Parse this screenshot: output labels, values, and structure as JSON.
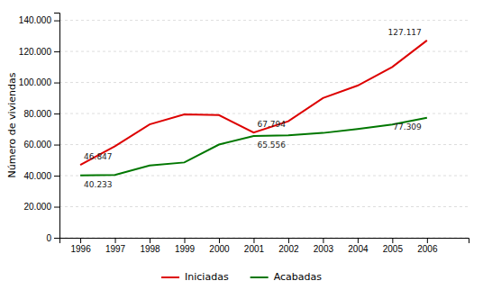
{
  "chart_data": {
    "type": "line",
    "y_label": "Número de viviendas",
    "x": [
      1996,
      1997,
      1998,
      1999,
      2000,
      2001,
      2002,
      2003,
      2004,
      2005,
      2006
    ],
    "series": [
      {
        "name": "Iniciadas",
        "color": "#dd0000",
        "values": [
          46847,
          59000,
          73000,
          79500,
          79000,
          67794,
          75000,
          90000,
          98000,
          110000,
          127117
        ]
      },
      {
        "name": "Acabadas",
        "color": "#007700",
        "values": [
          40233,
          40500,
          46500,
          48500,
          60000,
          65556,
          66000,
          67500,
          70000,
          73000,
          77309
        ]
      }
    ],
    "xlim": [
      1995.4,
      2007.2
    ],
    "xticks": [
      1996,
      1997,
      1998,
      1999,
      2000,
      2001,
      2002,
      2003,
      2004,
      2005,
      2006
    ],
    "ylim": [
      0,
      145000
    ],
    "yticks": [
      0,
      {
        "value": 20000,
        "label": "20.000"
      },
      {
        "value": 40000,
        "label": "40.000"
      },
      {
        "value": 60000,
        "label": "60.000"
      },
      {
        "value": 80000,
        "label": "80.000"
      },
      {
        "value": 100000,
        "label": "100.000"
      },
      {
        "value": 120000,
        "label": "120.000"
      },
      {
        "value": 140000,
        "label": "140.000"
      }
    ],
    "annotations": [
      {
        "text": "46.847",
        "x": 1996,
        "y": 46847
      },
      {
        "text": "40.233",
        "x": 1996,
        "y": 40233
      },
      {
        "text": "67.794",
        "x": 2001,
        "y": 67794
      },
      {
        "text": "65.556",
        "x": 2001,
        "y": 65556
      },
      {
        "text": "127.117",
        "x": 2006,
        "y": 127117
      },
      {
        "text": "77.309",
        "x": 2006,
        "y": 77309
      }
    ],
    "grid": true,
    "legend": "bottom"
  }
}
